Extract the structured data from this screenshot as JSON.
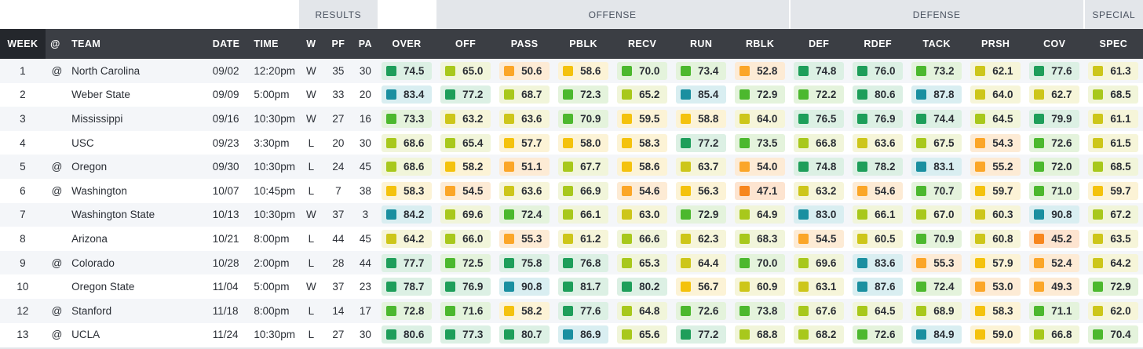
{
  "groups": {
    "results": "RESULTS",
    "offense": "OFFENSE",
    "defense": "DEFENSE",
    "special": "SPECIAL"
  },
  "columns": {
    "week": "WEEK",
    "at": "@",
    "team": "TEAM",
    "date": "DATE",
    "time": "TIME",
    "w": "W",
    "pf": "PF",
    "pa": "PA",
    "over": "OVER",
    "off": "OFF",
    "pass": "PASS",
    "pblk": "PBLK",
    "recv": "RECV",
    "run": "RUN",
    "rblk": "RBLK",
    "def": "DEF",
    "rdef": "RDEF",
    "tack": "TACK",
    "prsh": "PRSH",
    "cov": "COV",
    "spec": "SPEC"
  },
  "grade_keys": [
    "over",
    "off",
    "pass",
    "pblk",
    "recv",
    "run",
    "rblk",
    "def",
    "rdef",
    "tack",
    "prsh",
    "cov",
    "spec"
  ],
  "grade_colors": {
    "teal": {
      "square": "#1a8fa0",
      "bg": "#d9eef1"
    },
    "darkgreen": {
      "square": "#1e9e5a",
      "bg": "#dcf0e4"
    },
    "green": {
      "square": "#4cb82e",
      "bg": "#e4f3dc"
    },
    "lime": {
      "square": "#a8c81c",
      "bg": "#f1f5da"
    },
    "olive": {
      "square": "#cdc61a",
      "bg": "#f6f5d9"
    },
    "yellow": {
      "square": "#f4c20d",
      "bg": "#fcf3d6"
    },
    "orange": {
      "square": "#fba628",
      "bg": "#fdebd5"
    },
    "darkorange": {
      "square": "#f7861e",
      "bg": "#fde4d0"
    }
  },
  "rows": [
    {
      "week": "1",
      "at": "@",
      "team": "North Carolina",
      "date": "09/02",
      "time": "12:20pm",
      "w": "W",
      "pf": "35",
      "pa": "30",
      "grades": {
        "over": "74.5",
        "off": "65.0",
        "pass": "50.6",
        "pblk": "58.6",
        "recv": "70.0",
        "run": "73.4",
        "rblk": "52.8",
        "def": "74.8",
        "rdef": "76.0",
        "tack": "73.2",
        "prsh": "62.1",
        "cov": "77.6",
        "spec": "61.3"
      }
    },
    {
      "week": "2",
      "at": "",
      "team": "Weber State",
      "date": "09/09",
      "time": "5:00pm",
      "w": "W",
      "pf": "33",
      "pa": "20",
      "grades": {
        "over": "83.4",
        "off": "77.2",
        "pass": "68.7",
        "pblk": "72.3",
        "recv": "65.2",
        "run": "85.4",
        "rblk": "72.9",
        "def": "72.2",
        "rdef": "80.6",
        "tack": "87.8",
        "prsh": "64.0",
        "cov": "62.7",
        "spec": "68.5"
      }
    },
    {
      "week": "3",
      "at": "",
      "team": "Mississippi",
      "date": "09/16",
      "time": "10:30pm",
      "w": "W",
      "pf": "27",
      "pa": "16",
      "grades": {
        "over": "73.3",
        "off": "63.2",
        "pass": "63.6",
        "pblk": "70.9",
        "recv": "59.5",
        "run": "58.8",
        "rblk": "64.0",
        "def": "76.5",
        "rdef": "76.9",
        "tack": "74.4",
        "prsh": "64.5",
        "cov": "79.9",
        "spec": "61.1"
      }
    },
    {
      "week": "4",
      "at": "",
      "team": "USC",
      "date": "09/23",
      "time": "3:30pm",
      "w": "L",
      "pf": "20",
      "pa": "30",
      "grades": {
        "over": "68.6",
        "off": "65.4",
        "pass": "57.7",
        "pblk": "58.0",
        "recv": "58.3",
        "run": "77.2",
        "rblk": "73.5",
        "def": "66.8",
        "rdef": "63.6",
        "tack": "67.5",
        "prsh": "54.3",
        "cov": "72.6",
        "spec": "61.5"
      }
    },
    {
      "week": "5",
      "at": "@",
      "team": "Oregon",
      "date": "09/30",
      "time": "10:30pm",
      "w": "L",
      "pf": "24",
      "pa": "45",
      "grades": {
        "over": "68.6",
        "off": "58.2",
        "pass": "51.1",
        "pblk": "67.7",
        "recv": "58.6",
        "run": "63.7",
        "rblk": "54.0",
        "def": "74.8",
        "rdef": "78.2",
        "tack": "83.1",
        "prsh": "55.2",
        "cov": "72.0",
        "spec": "68.5"
      }
    },
    {
      "week": "6",
      "at": "@",
      "team": "Washington",
      "date": "10/07",
      "time": "10:45pm",
      "w": "L",
      "pf": "7",
      "pa": "38",
      "grades": {
        "over": "58.3",
        "off": "54.5",
        "pass": "63.6",
        "pblk": "66.9",
        "recv": "54.6",
        "run": "56.3",
        "rblk": "47.1",
        "def": "63.2",
        "rdef": "54.6",
        "tack": "70.7",
        "prsh": "59.7",
        "cov": "71.0",
        "spec": "59.7"
      }
    },
    {
      "week": "7",
      "at": "",
      "team": "Washington State",
      "date": "10/13",
      "time": "10:30pm",
      "w": "W",
      "pf": "37",
      "pa": "3",
      "grades": {
        "over": "84.2",
        "off": "69.6",
        "pass": "72.4",
        "pblk": "66.1",
        "recv": "63.0",
        "run": "72.9",
        "rblk": "64.9",
        "def": "83.0",
        "rdef": "66.1",
        "tack": "67.0",
        "prsh": "60.3",
        "cov": "90.8",
        "spec": "67.2"
      }
    },
    {
      "week": "8",
      "at": "",
      "team": "Arizona",
      "date": "10/21",
      "time": "8:00pm",
      "w": "L",
      "pf": "44",
      "pa": "45",
      "grades": {
        "over": "64.2",
        "off": "66.0",
        "pass": "55.3",
        "pblk": "61.2",
        "recv": "66.6",
        "run": "62.3",
        "rblk": "68.3",
        "def": "54.5",
        "rdef": "60.5",
        "tack": "70.9",
        "prsh": "60.8",
        "cov": "45.2",
        "spec": "63.5"
      }
    },
    {
      "week": "9",
      "at": "@",
      "team": "Colorado",
      "date": "10/28",
      "time": "2:00pm",
      "w": "L",
      "pf": "28",
      "pa": "44",
      "grades": {
        "over": "77.7",
        "off": "72.5",
        "pass": "75.8",
        "pblk": "76.8",
        "recv": "65.3",
        "run": "64.4",
        "rblk": "70.0",
        "def": "69.6",
        "rdef": "83.6",
        "tack": "55.3",
        "prsh": "57.9",
        "cov": "52.4",
        "spec": "64.2"
      }
    },
    {
      "week": "10",
      "at": "",
      "team": "Oregon State",
      "date": "11/04",
      "time": "5:00pm",
      "w": "W",
      "pf": "37",
      "pa": "23",
      "grades": {
        "over": "78.7",
        "off": "76.9",
        "pass": "90.8",
        "pblk": "81.7",
        "recv": "80.2",
        "run": "56.7",
        "rblk": "60.9",
        "def": "63.1",
        "rdef": "87.6",
        "tack": "72.4",
        "prsh": "53.0",
        "cov": "49.3",
        "spec": "72.9"
      }
    },
    {
      "week": "12",
      "at": "@",
      "team": "Stanford",
      "date": "11/18",
      "time": "8:00pm",
      "w": "L",
      "pf": "14",
      "pa": "17",
      "grades": {
        "over": "72.8",
        "off": "71.6",
        "pass": "58.2",
        "pblk": "77.6",
        "recv": "64.8",
        "run": "72.6",
        "rblk": "73.8",
        "def": "67.6",
        "rdef": "64.5",
        "tack": "68.9",
        "prsh": "58.3",
        "cov": "71.1",
        "spec": "62.0"
      }
    },
    {
      "week": "13",
      "at": "@",
      "team": "UCLA",
      "date": "11/24",
      "time": "10:30pm",
      "w": "L",
      "pf": "27",
      "pa": "30",
      "grades": {
        "over": "80.6",
        "off": "77.3",
        "pass": "80.7",
        "pblk": "86.9",
        "recv": "65.6",
        "run": "77.2",
        "rblk": "68.8",
        "def": "68.2",
        "rdef": "72.6",
        "tack": "84.9",
        "prsh": "59.0",
        "cov": "66.8",
        "spec": "70.4"
      }
    }
  ]
}
